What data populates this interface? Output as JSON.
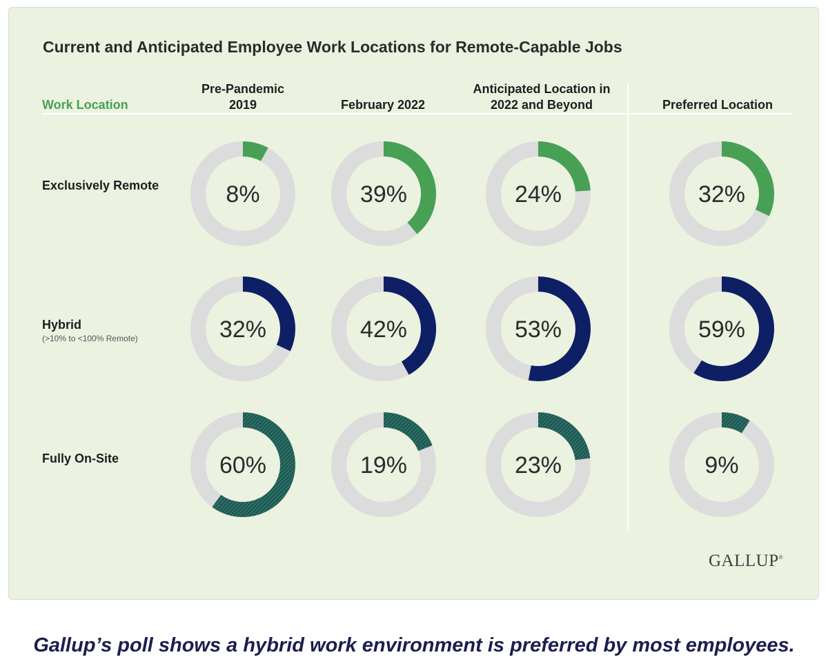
{
  "chart_data": {
    "type": "donut-grid",
    "title": "Current and Anticipated Employee Work Locations for Remote-Capable Jobs",
    "row_header": "Work Location",
    "columns": [
      "Pre-Pandemic 2019",
      "February 2022",
      "Anticipated Location in 2022 and Beyond",
      "Preferred Location"
    ],
    "column_lines": [
      [
        "Pre-Pandemic",
        "2019"
      ],
      [
        "February 2022"
      ],
      [
        "Anticipated Location in",
        "2022 and Beyond"
      ],
      [
        "Preferred Location"
      ]
    ],
    "rows": [
      {
        "label": "Exclusively Remote",
        "sublabel": "",
        "color": "#48a055",
        "values": [
          8,
          39,
          24,
          32
        ]
      },
      {
        "label": "Hybrid",
        "sublabel": "(>10% to <100% Remote)",
        "color": "#0e1f66",
        "values": [
          32,
          42,
          53,
          59
        ]
      },
      {
        "label": "Fully On-Site",
        "sublabel": "",
        "color": "#2a6f66",
        "values": [
          60,
          19,
          23,
          9
        ]
      }
    ],
    "unit": "%"
  },
  "colors": {
    "track": "#dcdcdc",
    "panel": "#ebf2e0"
  },
  "source": "GALLUP",
  "caption": "Gallup’s poll shows a hybrid work environment is preferred by most employees."
}
